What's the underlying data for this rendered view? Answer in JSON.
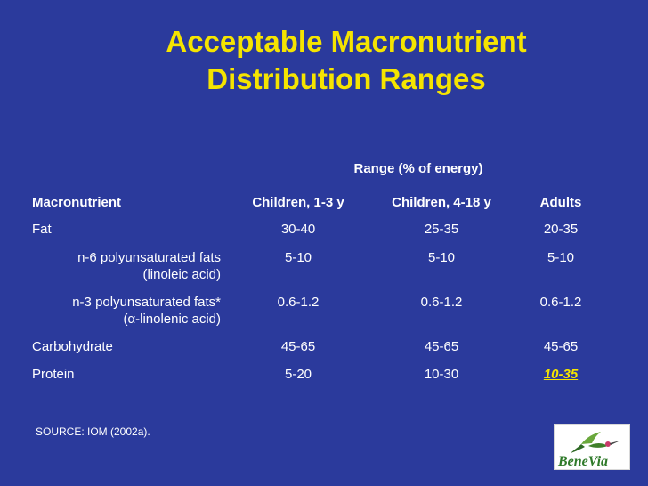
{
  "title": {
    "line1": "Acceptable Macronutrient",
    "line2": "Distribution Ranges"
  },
  "table": {
    "range_header": "Range (% of energy)",
    "columns": [
      "Macronutrient",
      "Children, 1-3 y",
      "Children, 4-18 y",
      "Adults"
    ],
    "rows": [
      {
        "name": "Fat",
        "c1": "30-40",
        "c2": "25-35",
        "c3": "20-35"
      },
      {
        "name1": "n-6 polyunsaturated fats",
        "name2": "(linoleic acid)",
        "c1": "5-10",
        "c2": "5-10",
        "c3": "5-10"
      },
      {
        "name1": "n-3 polyunsaturated fats*",
        "name2": "(α-linolenic acid)",
        "c1": "0.6-1.2",
        "c2": "0.6-1.2",
        "c3": "0.6-1.2"
      },
      {
        "name": "Carbohydrate",
        "c1": "45-65",
        "c2": "45-65",
        "c3": "45-65"
      },
      {
        "name": "Protein",
        "c1": "5-20",
        "c2": "10-30",
        "c3": "10-35"
      }
    ]
  },
  "source": "SOURCE: IOM (2002a).",
  "logo": {
    "text": "BeneVia",
    "icon": "hummingbird-icon"
  },
  "colors": {
    "background": "#2b3a9c",
    "title": "#f5e400",
    "text": "#ffffff",
    "highlight": "#f5e400"
  }
}
